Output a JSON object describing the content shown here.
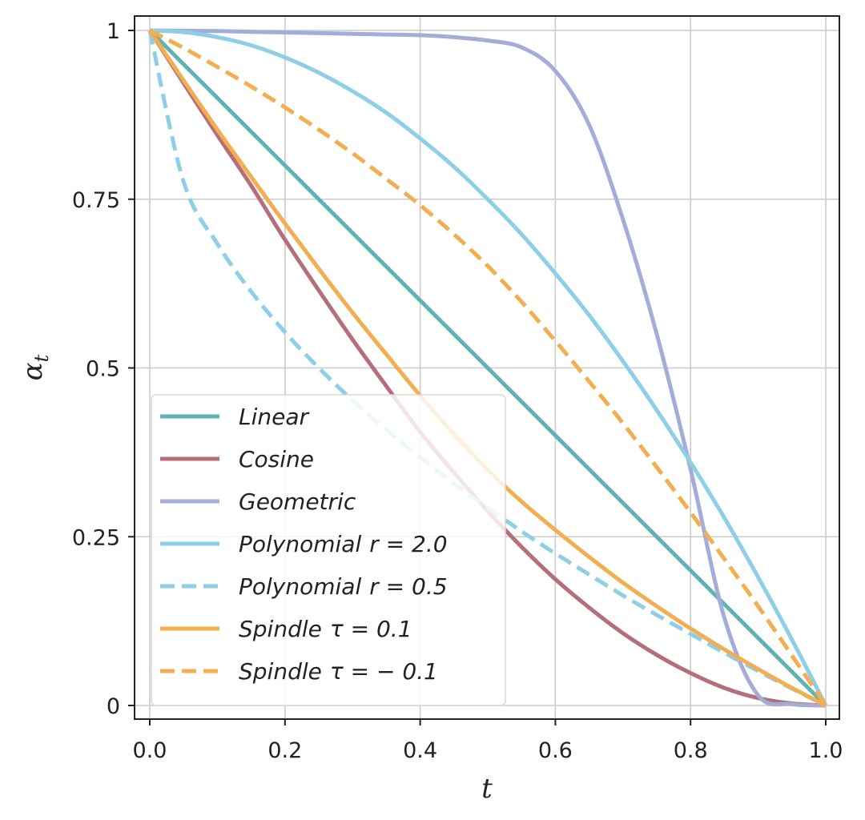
{
  "chart_data": {
    "type": "line",
    "xlabel": "t",
    "ylabel": "α",
    "ylabel_sub": "t",
    "xlim": [
      0,
      1
    ],
    "ylim": [
      0,
      1
    ],
    "grid": true,
    "legend_position": "lower-left",
    "x_ticks": [
      {
        "value": 0.0,
        "label": "0.0"
      },
      {
        "value": 0.2,
        "label": "0.2"
      },
      {
        "value": 0.4,
        "label": "0.4"
      },
      {
        "value": 0.6,
        "label": "0.6"
      },
      {
        "value": 0.8,
        "label": "0.8"
      },
      {
        "value": 1.0,
        "label": "1.0"
      }
    ],
    "y_ticks": [
      {
        "value": 0,
        "label": "0"
      },
      {
        "value": 0.25,
        "label": "0.25"
      },
      {
        "value": 0.5,
        "label": "0.5"
      },
      {
        "value": 0.75,
        "label": "0.75"
      },
      {
        "value": 1,
        "label": "1"
      }
    ],
    "x": [
      0.0,
      0.05,
      0.1,
      0.15,
      0.2,
      0.25,
      0.3,
      0.35,
      0.4,
      0.45,
      0.5,
      0.55,
      0.6,
      0.65,
      0.7,
      0.75,
      0.8,
      0.85,
      0.9,
      0.95,
      1.0
    ],
    "series": [
      {
        "name": "Linear",
        "color": "#5fb3b3",
        "dash": "solid",
        "values": [
          1.0,
          0.95,
          0.9,
          0.85,
          0.8,
          0.75,
          0.7,
          0.65,
          0.6,
          0.55,
          0.5,
          0.45,
          0.4,
          0.35,
          0.3,
          0.25,
          0.2,
          0.15,
          0.1,
          0.05,
          0.0
        ]
      },
      {
        "name": "Cosine",
        "color": "#b56f7a",
        "dash": "solid",
        "values": [
          1.0,
          0.922,
          0.845,
          0.77,
          0.69,
          0.615,
          0.542,
          0.473,
          0.405,
          0.345,
          0.288,
          0.235,
          0.187,
          0.145,
          0.107,
          0.075,
          0.048,
          0.026,
          0.011,
          0.003,
          0.0
        ]
      },
      {
        "name": "Geometric",
        "color": "#a4acd8",
        "dash": "solid",
        "values": [
          1.0,
          0.9995,
          0.999,
          0.998,
          0.997,
          0.996,
          0.995,
          0.994,
          0.993,
          0.99,
          0.985,
          0.975,
          0.94,
          0.86,
          0.72,
          0.55,
          0.35,
          0.13,
          0.015,
          0.002,
          0.0
        ]
      },
      {
        "name": "Polynomial r = 2.0",
        "color": "#8ecfe8",
        "dash": "solid",
        "values": [
          1.0,
          0.9975,
          0.99,
          0.978,
          0.96,
          0.9375,
          0.91,
          0.878,
          0.84,
          0.798,
          0.75,
          0.698,
          0.64,
          0.578,
          0.51,
          0.4375,
          0.36,
          0.278,
          0.19,
          0.0975,
          0.0
        ]
      },
      {
        "name": "Polynomial r = 0.5",
        "color": "#8ecfe8",
        "dash": "dashed",
        "values": [
          1.0,
          0.776,
          0.684,
          0.613,
          0.553,
          0.5,
          0.452,
          0.408,
          0.368,
          0.329,
          0.293,
          0.258,
          0.225,
          0.194,
          0.163,
          0.134,
          0.106,
          0.078,
          0.051,
          0.025,
          0.0
        ]
      },
      {
        "name": "Spindle τ = 0.1",
        "color": "#f2ae4f",
        "dash": "solid",
        "values": [
          1.0,
          0.926,
          0.853,
          0.783,
          0.714,
          0.647,
          0.582,
          0.52,
          0.459,
          0.402,
          0.349,
          0.302,
          0.26,
          0.22,
          0.182,
          0.147,
          0.114,
          0.083,
          0.054,
          0.026,
          0.0
        ]
      },
      {
        "name": "Spindle τ = −0.1",
        "color": "#f2ae4f",
        "dash": "dashed",
        "values": [
          1.0,
          0.974,
          0.946,
          0.917,
          0.886,
          0.853,
          0.818,
          0.78,
          0.741,
          0.698,
          0.651,
          0.598,
          0.54,
          0.48,
          0.418,
          0.353,
          0.286,
          0.217,
          0.147,
          0.074,
          0.0
        ]
      }
    ]
  },
  "legend": {
    "entries": [
      {
        "base": "Linear",
        "math": ""
      },
      {
        "base": "Cosine",
        "math": ""
      },
      {
        "base": "Geometric",
        "math": ""
      },
      {
        "base": "Polynomial",
        "math": "r = 2.0"
      },
      {
        "base": "Polynomial",
        "math": "r = 0.5"
      },
      {
        "base": "Spindle",
        "math": "τ = 0.1"
      },
      {
        "base": "Spindle",
        "math": "τ = − 0.1"
      }
    ]
  }
}
